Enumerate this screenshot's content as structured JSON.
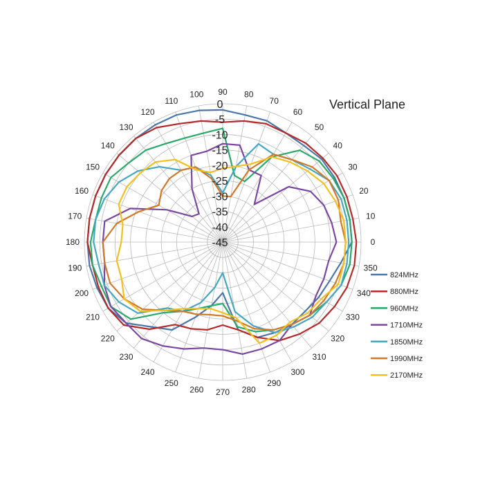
{
  "chart_data": {
    "type": "polar",
    "title": "Vertical Plane",
    "radial_ticks": [
      "0",
      "-5",
      "-10",
      "-15",
      "-20",
      "-25",
      "-30",
      "-35",
      "-40",
      "-45"
    ],
    "radial_range": [
      -45,
      0
    ],
    "angle_ticks": [
      "0",
      "10",
      "20",
      "30",
      "40",
      "50",
      "60",
      "70",
      "80",
      "90",
      "100",
      "110",
      "120",
      "130",
      "140",
      "150",
      "160",
      "170",
      "180",
      "190",
      "200",
      "210",
      "220",
      "230",
      "240",
      "250",
      "260",
      "270",
      "280",
      "290",
      "300",
      "310",
      "320",
      "330",
      "340",
      "350"
    ],
    "angles": [
      0,
      10,
      20,
      30,
      40,
      50,
      60,
      70,
      80,
      90,
      100,
      110,
      120,
      130,
      140,
      150,
      160,
      170,
      180,
      190,
      200,
      210,
      220,
      230,
      240,
      250,
      260,
      270,
      280,
      290,
      300,
      310,
      320,
      330,
      340,
      350
    ],
    "grid": true,
    "legend_position": "right",
    "series": [
      {
        "name": "824MHz",
        "color": "#4a76a8",
        "values": [
          -3,
          -3,
          -3,
          -3,
          -3,
          -4,
          -4,
          -3,
          -3,
          -2,
          -1.5,
          -1,
          -1,
          -1,
          -1,
          -1,
          -1,
          -1,
          -1,
          -1,
          -1.5,
          -2,
          -4,
          -9,
          -12,
          -19,
          -24,
          -28.5,
          -16,
          -12,
          -11,
          -10,
          -10,
          -9,
          -8,
          -6
        ]
      },
      {
        "name": "880MHz",
        "color": "#b22a2a",
        "values": [
          -1.5,
          -2,
          -2,
          -2,
          -2.5,
          -3,
          -4,
          -4,
          -5,
          -6,
          -5,
          -4,
          -2,
          -1,
          -1,
          -1,
          -1,
          -1,
          -1,
          -2,
          -2,
          -2,
          -3,
          -8,
          -14,
          -15,
          -16,
          -18,
          -16,
          -12,
          -8,
          -6,
          -4,
          -3,
          -2,
          -1.5
        ]
      },
      {
        "name": "960MHz",
        "color": "#2aa86a",
        "values": [
          -3,
          -3,
          -3,
          -3.5,
          -4,
          -6,
          -13,
          -24,
          -23,
          -8,
          -9,
          -9,
          -8,
          -6,
          -5,
          -3,
          -3,
          -3,
          -2,
          -2,
          -3,
          -3,
          -6,
          -15,
          -19,
          -22,
          -24,
          -25,
          -17,
          -14,
          -12,
          -10,
          -8,
          -6,
          -4,
          -3
        ]
      },
      {
        "name": "1710MHz",
        "color": "#7a47a0",
        "values": [
          -8,
          -9,
          -10,
          -12,
          -17,
          -29,
          -20,
          -20,
          -13,
          -13,
          -15,
          -15,
          -25,
          -33,
          -32,
          -24,
          -13,
          -6,
          -6,
          -6,
          -4,
          -3,
          -4,
          -4,
          -6,
          -8,
          -10,
          -10,
          -8,
          -8,
          -8,
          -10,
          -8,
          -10,
          -10,
          -10
        ]
      },
      {
        "name": "1850MHz",
        "color": "#45a6c0",
        "values": [
          -4,
          -4,
          -4,
          -5,
          -8,
          -10,
          -12,
          -11,
          -20,
          -29,
          -23,
          -19,
          -18,
          -13,
          -9,
          -6,
          -4,
          -3,
          -3,
          -4,
          -4,
          -6,
          -9,
          -17,
          -19,
          -24,
          -30,
          -35,
          -22,
          -16,
          -11,
          -9,
          -7,
          -6,
          -4,
          -4
        ]
      },
      {
        "name": "1990MHz",
        "color": "#d0782a",
        "values": [
          -5,
          -6,
          -5,
          -5,
          -7,
          -10,
          -12,
          -20,
          -30,
          -30,
          -24,
          -19,
          -18,
          -18,
          -19,
          -21,
          -16,
          -10,
          -6,
          -6,
          -6,
          -8,
          -11,
          -16,
          -19,
          -20,
          -21,
          -21,
          -19,
          -15,
          -12,
          -10,
          -8,
          -7,
          -6,
          -5
        ]
      },
      {
        "name": "2170MHz",
        "color": "#f2c01e",
        "values": [
          -5,
          -5,
          -6,
          -7,
          -9,
          -11,
          -13,
          -18,
          -20,
          -21,
          -22,
          -20,
          -14,
          -11,
          -10,
          -9,
          -9,
          -12,
          -12,
          -10,
          -10,
          -8,
          -10,
          -16,
          -20,
          -22,
          -23,
          -22,
          -20,
          -10,
          -10,
          -11,
          -9,
          -8,
          -5,
          -5
        ]
      }
    ]
  }
}
